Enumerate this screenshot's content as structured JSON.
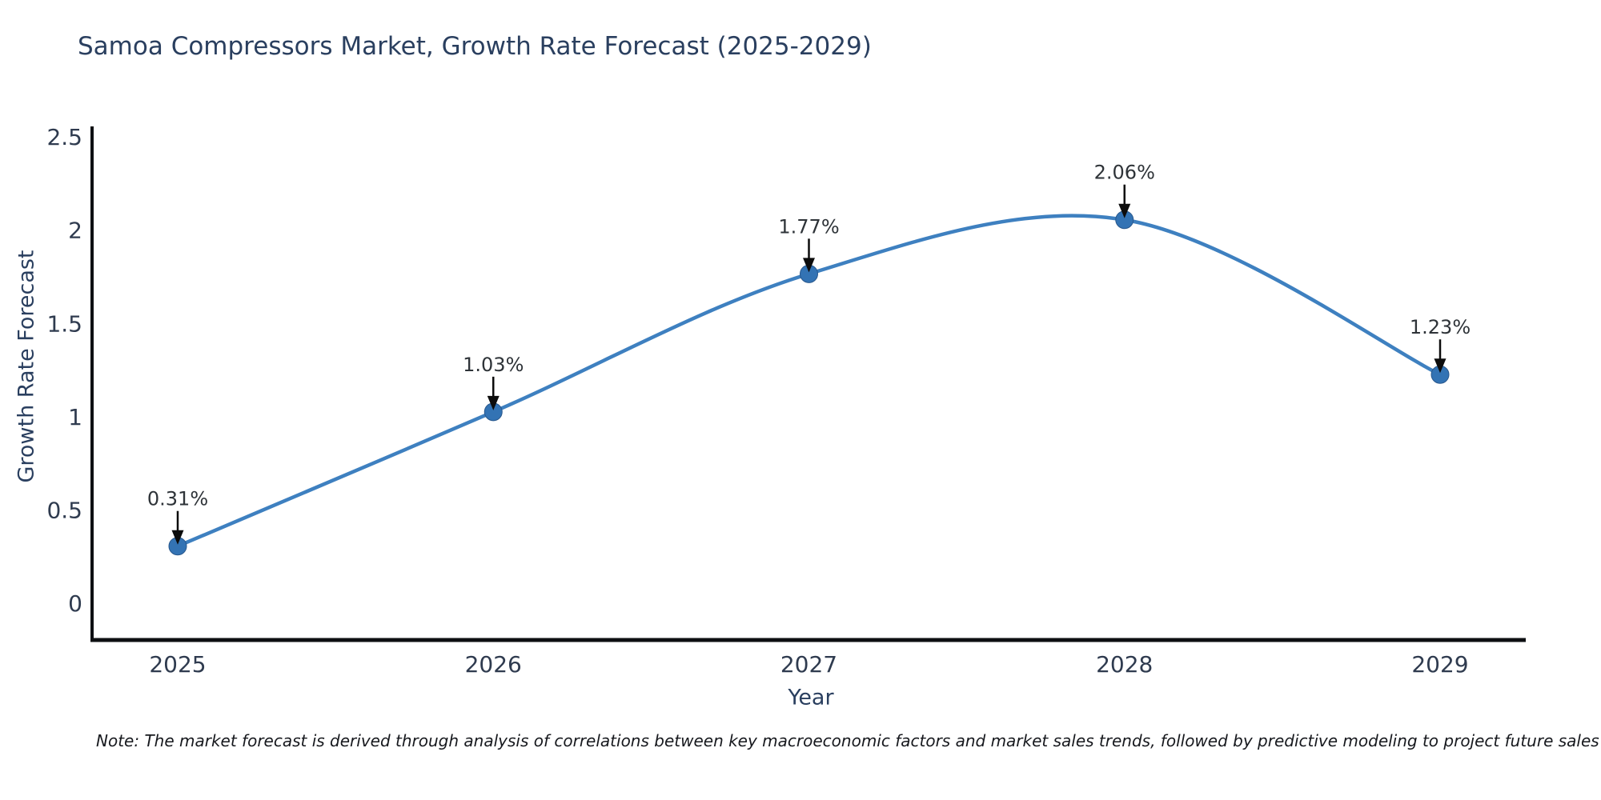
{
  "chart_data": {
    "type": "line",
    "title": "Samoa Compressors Market, Growth Rate Forecast (2025-2029)",
    "xlabel": "Year",
    "ylabel": "Growth Rate Forecast",
    "categories": [
      "2025",
      "2026",
      "2027",
      "2028",
      "2029"
    ],
    "series": [
      {
        "name": "Growth Rate Forecast",
        "values": [
          0.31,
          1.03,
          1.77,
          2.06,
          1.23
        ]
      }
    ],
    "point_labels": [
      "0.31%",
      "1.03%",
      "1.77%",
      "2.06%",
      "1.23%"
    ],
    "yticks": [
      0,
      0.5,
      1,
      1.5,
      2,
      2.5
    ],
    "ytick_labels": [
      "0",
      "0.5",
      "1",
      "1.5",
      "2",
      "2.5"
    ],
    "ylim": [
      0,
      2.5
    ],
    "line_shape": "spline",
    "markers": true,
    "annotations_have_arrows": true,
    "grid": false,
    "legend_position": "none",
    "note": "Note: The market forecast is derived through analysis of correlations between key macroeconomic factors and market sales trends, followed by predictive modeling to project future sales",
    "colors": {
      "line": "#3e80c0",
      "marker": "#3373b4",
      "marker_edge": "#28578c",
      "axis_spine": "#0d0f12",
      "arrow": "#0c0c0c",
      "title_text": "#2a3f5f",
      "tick_text": "#2f3b4f",
      "annotation_text": "#2e3338",
      "note_text": "#17191e"
    }
  }
}
